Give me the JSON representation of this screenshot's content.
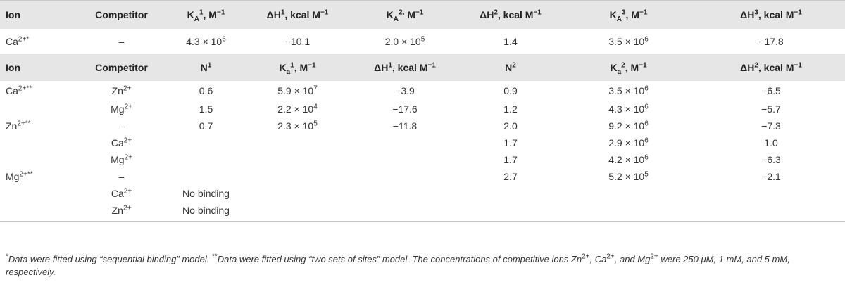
{
  "table1": {
    "headers": [
      "Ion",
      "Competitor",
      "K_A^1, M^-1",
      "ΔH^1, kcal M^-1",
      "K_A^2, M^-1",
      "ΔH^2, kcal M^-1",
      "K_A^3, M^-1",
      "ΔH^3, kcal M^-1"
    ],
    "row": {
      "ion": "Ca",
      "ion_sup": "2+*",
      "competitor": "–",
      "ka1_base": "4.3 × 10",
      "ka1_exp": "6",
      "dh1": "−10.1",
      "ka2_base": "2.0 × 10",
      "ka2_exp": "5",
      "dh2": "1.4",
      "ka3_base": "3.5 × 10",
      "ka3_exp": "6",
      "dh3": "−17.8"
    }
  },
  "table2": {
    "headers": [
      "Ion",
      "Competitor",
      "N^1",
      "K_a^1, M^-1",
      "ΔH^1, kcal M^-1",
      "N^2",
      "K_a^2, M^-1",
      "ΔH^2, kcal M^-1"
    ],
    "rows": [
      {
        "ion": "Ca",
        "ion_sup": "2+**",
        "comp": "Zn",
        "comp_sup": "2+",
        "n1": "0.6",
        "ka1_base": "5.9 × 10",
        "ka1_exp": "7",
        "dh1": "−3.9",
        "n2": "0.9",
        "ka2_base": "3.5 × 10",
        "ka2_exp": "6",
        "dh2": "−6.5"
      },
      {
        "ion": "",
        "ion_sup": "",
        "comp": "Mg",
        "comp_sup": "2+",
        "n1": "1.5",
        "ka1_base": "2.2 × 10",
        "ka1_exp": "4",
        "dh1": "−17.6",
        "n2": "1.2",
        "ka2_base": "4.3 × 10",
        "ka2_exp": "6",
        "dh2": "−5.7"
      },
      {
        "ion": "Zn",
        "ion_sup": "2+**",
        "comp": "–",
        "comp_sup": "",
        "n1": "0.7",
        "ka1_base": "2.3 × 10",
        "ka1_exp": "5",
        "dh1": "−11.8",
        "n2": "2.0",
        "ka2_base": "9.2 × 10",
        "ka2_exp": "6",
        "dh2": "−7.3"
      },
      {
        "ion": "",
        "ion_sup": "",
        "comp": "Ca",
        "comp_sup": "2+",
        "n1": "",
        "ka1_base": "",
        "ka1_exp": "",
        "dh1": "",
        "n2": "1.7",
        "ka2_base": "2.9 × 10",
        "ka2_exp": "6",
        "dh2": "1.0"
      },
      {
        "ion": "",
        "ion_sup": "",
        "comp": "Mg",
        "comp_sup": "2+",
        "n1": "",
        "ka1_base": "",
        "ka1_exp": "",
        "dh1": "",
        "n2": "1.7",
        "ka2_base": "4.2 × 10",
        "ka2_exp": "6",
        "dh2": "−6.3"
      },
      {
        "ion": "Mg",
        "ion_sup": "2+**",
        "comp": "–",
        "comp_sup": "",
        "n1": "",
        "ka1_base": "",
        "ka1_exp": "",
        "dh1": "",
        "n2": "2.7",
        "ka2_base": "5.2 × 10",
        "ka2_exp": "5",
        "dh2": "−2.1"
      },
      {
        "ion": "",
        "ion_sup": "",
        "comp": "Ca",
        "comp_sup": "2+",
        "n1": "No binding",
        "ka1_base": "",
        "ka1_exp": "",
        "dh1": "",
        "n2": "",
        "ka2_base": "",
        "ka2_exp": "",
        "dh2": ""
      },
      {
        "ion": "",
        "ion_sup": "",
        "comp": "Zn",
        "comp_sup": "2+",
        "n1": "No binding",
        "ka1_base": "",
        "ka1_exp": "",
        "dh1": "",
        "n2": "",
        "ka2_base": "",
        "ka2_exp": "",
        "dh2": ""
      }
    ]
  },
  "footnote": {
    "mark1": "*",
    "text1": "Data were fitted using “sequential binding” model. ",
    "mark2": "**",
    "text2": "Data were fitted using “two sets of sites” model. The concentrations of competitive ions Zn",
    "sup_a": "2+",
    "text3": ", Ca",
    "sup_b": "2+",
    "text4": ", and Mg",
    "sup_c": "2+",
    "text5": " were 250 μM, 1 mM, and 5 mM, respectively."
  }
}
